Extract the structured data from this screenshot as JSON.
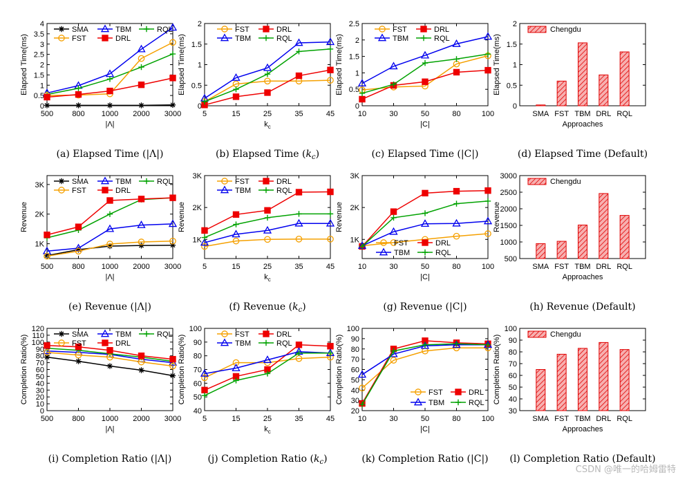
{
  "watermark": "CSDN @唯一的哈姆雷特",
  "chart_data": [
    {
      "id": "a",
      "type": "line",
      "caption": "(a) Elapsed Time (|Λ|)",
      "title": "",
      "xlabel": "|Λ|",
      "ylabel": "Elapsed Time(ms)",
      "x": [
        "500",
        "800",
        "1000",
        "2000",
        "3000"
      ],
      "ylim": [
        0,
        4
      ],
      "yticks": [
        "0",
        "0.5",
        "1",
        "1.5",
        "2",
        "2.5",
        "3",
        "3.5",
        "4"
      ],
      "grid": false,
      "legend_position": "top",
      "legend_order": [
        "SMA",
        "TBM",
        "RQL",
        "FST",
        "DRL"
      ],
      "series": [
        {
          "name": "SMA",
          "values": [
            0.02,
            0.02,
            0.02,
            0.02,
            0.04
          ]
        },
        {
          "name": "TBM",
          "values": [
            0.62,
            0.98,
            1.55,
            2.75,
            3.8
          ]
        },
        {
          "name": "RQL",
          "values": [
            0.55,
            0.85,
            1.3,
            1.88,
            2.52
          ]
        },
        {
          "name": "FST",
          "values": [
            0.5,
            0.52,
            0.58,
            2.3,
            3.08
          ]
        },
        {
          "name": "DRL",
          "values": [
            0.42,
            0.55,
            0.72,
            1.02,
            1.35
          ]
        }
      ]
    },
    {
      "id": "b",
      "type": "line",
      "caption": "(b) Elapsed Time (k_c)",
      "title": "",
      "xlabel": "k_c",
      "ylabel": "Elapsed Time(ms)",
      "x": [
        "5",
        "15",
        "25",
        "35",
        "45"
      ],
      "ylim": [
        0,
        2
      ],
      "yticks": [
        "0",
        "0.5",
        "1",
        "1.5",
        "2"
      ],
      "grid": false,
      "legend_position": "top",
      "legend_order": [
        "FST",
        "DRL",
        "TBM",
        "RQL"
      ],
      "series": [
        {
          "name": "FST",
          "values": [
            0.1,
            0.53,
            0.6,
            0.6,
            0.62
          ]
        },
        {
          "name": "DRL",
          "values": [
            0.02,
            0.22,
            0.32,
            0.73,
            0.87
          ]
        },
        {
          "name": "TBM",
          "values": [
            0.18,
            0.68,
            0.92,
            1.53,
            1.55
          ]
        },
        {
          "name": "RQL",
          "values": [
            0.1,
            0.4,
            0.77,
            1.32,
            1.38
          ]
        }
      ]
    },
    {
      "id": "c",
      "type": "line",
      "caption": "(c) Elapsed Time (|C|)",
      "title": "",
      "xlabel": "|C|",
      "ylabel": "Elapsed Time(ms)",
      "x": [
        "10",
        "30",
        "50",
        "80",
        "100"
      ],
      "ylim": [
        0,
        2.5
      ],
      "yticks": [
        "0",
        "0.5",
        "1",
        "1.5",
        "2",
        "2.5"
      ],
      "grid": false,
      "legend_position": "top",
      "legend_order": [
        "FST",
        "DRL",
        "TBM",
        "RQL"
      ],
      "series": [
        {
          "name": "FST",
          "values": [
            0.48,
            0.57,
            0.6,
            1.27,
            1.52
          ]
        },
        {
          "name": "DRL",
          "values": [
            0.2,
            0.62,
            0.73,
            1.02,
            1.08
          ]
        },
        {
          "name": "TBM",
          "values": [
            0.68,
            1.2,
            1.53,
            1.88,
            2.1
          ]
        },
        {
          "name": "RQL",
          "values": [
            0.38,
            0.65,
            1.3,
            1.42,
            1.57
          ]
        }
      ]
    },
    {
      "id": "d",
      "type": "bar",
      "caption": "(d) Elapsed Time (Default)",
      "title": "",
      "xlabel": "Approaches",
      "ylabel": "Elapsed Time(ms)",
      "categories": [
        "SMA",
        "FST",
        "TBM",
        "DRL",
        "RQL"
      ],
      "ylim": [
        0,
        2
      ],
      "yticks": [
        "0",
        "0.5",
        "1",
        "1.5",
        "2"
      ],
      "grid": false,
      "legend_position": "top-left",
      "series": [
        {
          "name": "Chengdu",
          "values": [
            0.02,
            0.6,
            1.53,
            0.75,
            1.31
          ]
        }
      ]
    },
    {
      "id": "e",
      "type": "line",
      "caption": "(e) Revenue (|Λ|)",
      "title": "",
      "xlabel": "|Λ|",
      "ylabel": "Revenue",
      "x": [
        "500",
        "800",
        "1000",
        "2000",
        "3000"
      ],
      "ylim": [
        500,
        3300
      ],
      "ytick_values": [
        1000,
        2000,
        3000
      ],
      "yticks": [
        "1K",
        "2K",
        "3K"
      ],
      "grid": false,
      "legend_position": "top",
      "legend_order": [
        "SMA",
        "TBM",
        "RQL",
        "FST",
        "DRL"
      ],
      "series": [
        {
          "name": "SMA",
          "values": [
            600,
            800,
            920,
            940,
            950
          ]
        },
        {
          "name": "TBM",
          "values": [
            750,
            850,
            1500,
            1630,
            1670
          ]
        },
        {
          "name": "RQL",
          "values": [
            1200,
            1460,
            2000,
            2490,
            2550
          ]
        },
        {
          "name": "FST",
          "values": [
            580,
            750,
            990,
            1060,
            1090
          ]
        },
        {
          "name": "DRL",
          "values": [
            1300,
            1570,
            2460,
            2510,
            2550
          ]
        }
      ]
    },
    {
      "id": "f",
      "type": "line",
      "caption": "(f) Revenue (k_c)",
      "title": "",
      "xlabel": "k_c",
      "ylabel": "Revenue",
      "x": [
        "5",
        "15",
        "25",
        "35",
        "45"
      ],
      "ylim": [
        400,
        3000
      ],
      "ytick_values": [
        1000,
        2000,
        3000
      ],
      "yticks": [
        "1K",
        "2K",
        "3K"
      ],
      "grid": false,
      "legend_position": "top",
      "legend_order": [
        "FST",
        "DRL",
        "TBM",
        "RQL"
      ],
      "series": [
        {
          "name": "FST",
          "values": [
            780,
            950,
            1000,
            1010,
            1010
          ]
        },
        {
          "name": "DRL",
          "values": [
            1280,
            1780,
            1910,
            2480,
            2490
          ]
        },
        {
          "name": "TBM",
          "values": [
            900,
            1160,
            1280,
            1500,
            1500
          ]
        },
        {
          "name": "RQL",
          "values": [
            1060,
            1470,
            1680,
            1800,
            1800
          ]
        }
      ]
    },
    {
      "id": "g",
      "type": "line",
      "caption": "(g) Revenue (|C|)",
      "title": "",
      "xlabel": "|C|",
      "ylabel": "Revenue",
      "x": [
        "10",
        "30",
        "50",
        "80",
        "100"
      ],
      "ylim": [
        400,
        3000
      ],
      "ytick_values": [
        1000,
        2000,
        3000
      ],
      "yticks": [
        "1K",
        "2K",
        "3K"
      ],
      "grid": false,
      "legend_position": "bottom",
      "legend_order": [
        "FST",
        "DRL",
        "TBM",
        "RQL"
      ],
      "series": [
        {
          "name": "FST",
          "values": [
            800,
            900,
            1000,
            1100,
            1180
          ]
        },
        {
          "name": "DRL",
          "values": [
            780,
            1870,
            2450,
            2510,
            2530
          ]
        },
        {
          "name": "TBM",
          "values": [
            800,
            1240,
            1490,
            1500,
            1570
          ]
        },
        {
          "name": "RQL",
          "values": [
            780,
            1680,
            1820,
            2120,
            2200
          ]
        }
      ]
    },
    {
      "id": "h",
      "type": "bar",
      "caption": "(h) Revenue (Default)",
      "title": "",
      "xlabel": "Approaches",
      "ylabel": "Revenue",
      "categories": [
        "SMA",
        "FST",
        "TBM",
        "DRL",
        "RQL"
      ],
      "ylim": [
        500,
        3000
      ],
      "yticks": [
        "500",
        "1000",
        "1500",
        "2000",
        "2500",
        "3000"
      ],
      "grid": false,
      "legend_position": "top-left",
      "series": [
        {
          "name": "Chengdu",
          "values": [
            950,
            1020,
            1510,
            2460,
            1800
          ]
        }
      ]
    },
    {
      "id": "i",
      "type": "line",
      "caption": "(i) Completion Ratio (|Λ|)",
      "title": "",
      "xlabel": "|Λ|",
      "ylabel": "Completion Ratio(%)",
      "x": [
        "500",
        "800",
        "1000",
        "2000",
        "3000"
      ],
      "ylim": [
        0,
        120
      ],
      "yticks": [
        "0",
        "10",
        "20",
        "30",
        "40",
        "50",
        "60",
        "70",
        "80",
        "90",
        "100",
        "110",
        "120"
      ],
      "grid": false,
      "legend_position": "top",
      "legend_order": [
        "SMA",
        "TBM",
        "RQL",
        "FST",
        "DRL"
      ],
      "series": [
        {
          "name": "SMA",
          "values": [
            78,
            72,
            65,
            59,
            51
          ]
        },
        {
          "name": "TBM",
          "values": [
            87,
            85,
            82,
            75,
            70
          ]
        },
        {
          "name": "RQL",
          "values": [
            91,
            88,
            83,
            78,
            72
          ]
        },
        {
          "name": "FST",
          "values": [
            85,
            81,
            78,
            71,
            65
          ]
        },
        {
          "name": "DRL",
          "values": [
            95,
            93,
            88,
            80,
            75
          ]
        }
      ]
    },
    {
      "id": "j",
      "type": "line",
      "caption": "(j) Completion Ratio (k_c)",
      "title": "",
      "xlabel": "k_c",
      "ylabel": "Completion Ratio(%)",
      "x": [
        "5",
        "15",
        "25",
        "35",
        "45"
      ],
      "ylim": [
        40,
        100
      ],
      "yticks": [
        "40",
        "50",
        "60",
        "70",
        "80",
        "90",
        "100"
      ],
      "grid": false,
      "legend_position": "top",
      "legend_order": [
        "FST",
        "DRL",
        "TBM",
        "RQL"
      ],
      "series": [
        {
          "name": "FST",
          "values": [
            64,
            75,
            75,
            78,
            79
          ]
        },
        {
          "name": "DRL",
          "values": [
            55,
            65,
            70,
            88,
            87
          ]
        },
        {
          "name": "TBM",
          "values": [
            67,
            71,
            77,
            83,
            82
          ]
        },
        {
          "name": "RQL",
          "values": [
            51,
            62,
            67,
            82,
            82
          ]
        }
      ]
    },
    {
      "id": "k",
      "type": "line",
      "caption": "(k) Completion Ratio (|C|)",
      "title": "",
      "xlabel": "|C|",
      "ylabel": "Completion Ratio(%)",
      "x": [
        "10",
        "30",
        "50",
        "80",
        "100"
      ],
      "ylim": [
        20,
        100
      ],
      "yticks": [
        "20",
        "30",
        "40",
        "50",
        "60",
        "70",
        "80",
        "90",
        "100"
      ],
      "grid": false,
      "legend_position": "bottom-right",
      "legend_order": [
        "FST",
        "DRL",
        "TBM",
        "RQL"
      ],
      "series": [
        {
          "name": "FST",
          "values": [
            42,
            69,
            78,
            81,
            81
          ]
        },
        {
          "name": "DRL",
          "values": [
            27,
            80,
            88,
            86,
            85
          ]
        },
        {
          "name": "TBM",
          "values": [
            55,
            75,
            83,
            84,
            84
          ]
        },
        {
          "name": "RQL",
          "values": [
            26,
            78,
            84,
            85,
            84
          ]
        }
      ]
    },
    {
      "id": "l",
      "type": "bar",
      "caption": "(l) Completion Ratio (Default)",
      "title": "",
      "xlabel": "Approaches",
      "ylabel": "Completion Ratio(%)",
      "categories": [
        "SMA",
        "FST",
        "TBM",
        "DRL",
        "RQL"
      ],
      "ylim": [
        30,
        100
      ],
      "yticks": [
        "30",
        "40",
        "50",
        "60",
        "70",
        "80",
        "90",
        "100"
      ],
      "grid": false,
      "legend_position": "top-left",
      "series": [
        {
          "name": "Chengdu",
          "values": [
            65,
            78,
            83,
            88,
            82
          ]
        }
      ]
    }
  ],
  "series_styles": {
    "SMA": {
      "color": "#000000",
      "marker": "star"
    },
    "TBM": {
      "color": "#0000ee",
      "marker": "triangle"
    },
    "RQL": {
      "color": "#00a200",
      "marker": "plus"
    },
    "FST": {
      "color": "#f5a000",
      "marker": "circle"
    },
    "DRL": {
      "color": "#ee0000",
      "marker": "square"
    },
    "Chengdu": {
      "color": "#ee0000",
      "fill": "#f7b0b0",
      "marker": "hatched-bar"
    }
  }
}
